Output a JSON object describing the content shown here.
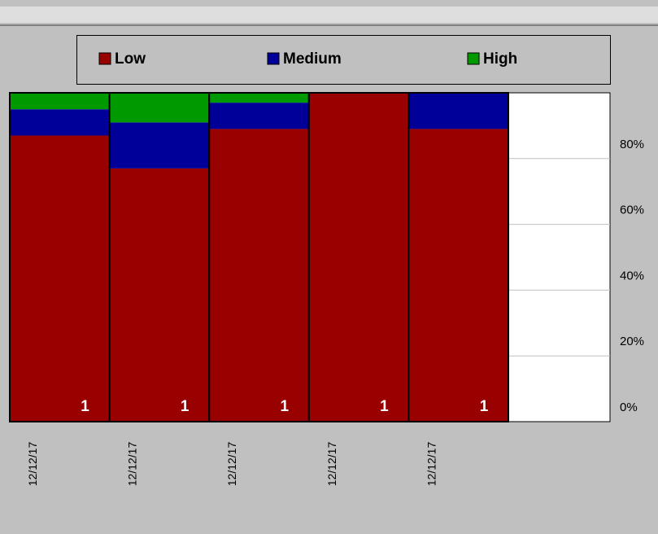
{
  "chart_data": {
    "type": "stacked_bar_percent",
    "categories": [
      "12/12/17",
      "12/12/17",
      "12/12/17",
      "12/12/17",
      "12/12/17",
      null
    ],
    "series": [
      {
        "name": "Low",
        "color": "#990000",
        "values": [
          87,
          77,
          89,
          100,
          89,
          null
        ]
      },
      {
        "name": "Medium",
        "color": "#000099",
        "values": [
          8,
          14,
          8,
          0,
          11,
          null
        ]
      },
      {
        "name": "High",
        "color": "#009900",
        "values": [
          5,
          9,
          3,
          0,
          0,
          null
        ]
      }
    ],
    "bar_labels": [
      1,
      1,
      1,
      1,
      1,
      null
    ],
    "ylim": [
      0,
      100
    ],
    "yticks": [
      {
        "value": 0,
        "label": "0%"
      },
      {
        "value": 20,
        "label": "20%"
      },
      {
        "value": 40,
        "label": "40%"
      },
      {
        "value": 60,
        "label": "60%"
      },
      {
        "value": 80,
        "label": "80%"
      }
    ],
    "grid": true
  }
}
